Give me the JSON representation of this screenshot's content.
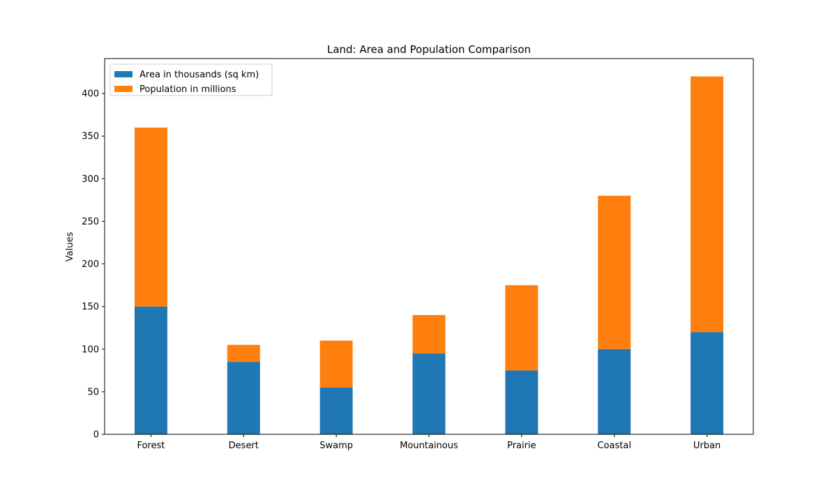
{
  "chart_data": {
    "type": "bar",
    "stacked": true,
    "title": "Land: Area and Population Comparison",
    "xlabel": "",
    "ylabel": "Values",
    "categories": [
      "Forest",
      "Desert",
      "Swamp",
      "Mountainous",
      "Prairie",
      "Coastal",
      "Urban"
    ],
    "series": [
      {
        "name": "Area in thousands (sq km)",
        "values": [
          150,
          85,
          55,
          95,
          75,
          100,
          120
        ],
        "color": "#1f77b4"
      },
      {
        "name": "Population in millions",
        "values": [
          210,
          20,
          55,
          45,
          100,
          180,
          300
        ],
        "color": "#ff7f0e"
      }
    ],
    "ylim": [
      0,
      441
    ],
    "yticks": [
      0,
      50,
      100,
      150,
      200,
      250,
      300,
      350,
      400
    ],
    "grid": false,
    "legend_position": "top-left"
  }
}
